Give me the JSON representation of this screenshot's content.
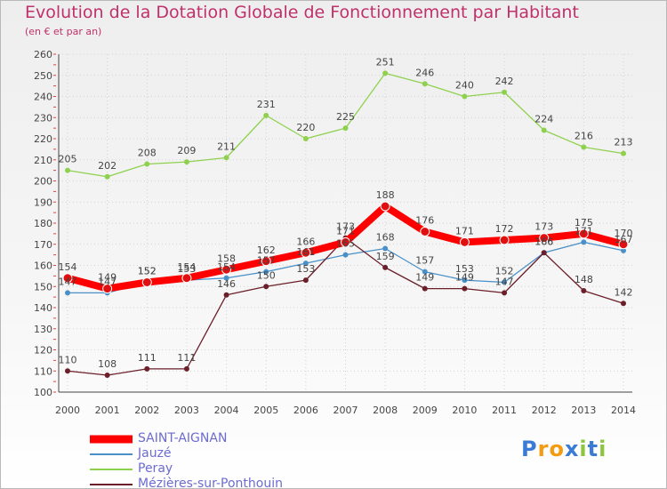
{
  "chart_data": {
    "type": "line",
    "title": "Evolution de la Dotation Globale de Fonctionnement par Habitant",
    "subtitle": "(en € et par an)",
    "x": [
      "2000",
      "2001",
      "2002",
      "2003",
      "2004",
      "2005",
      "2006",
      "2007",
      "2008",
      "2009",
      "2010",
      "2011",
      "2012",
      "2013",
      "2014"
    ],
    "ylim": [
      100,
      260
    ],
    "yticks": [
      100,
      110,
      120,
      130,
      140,
      150,
      160,
      170,
      180,
      190,
      200,
      210,
      220,
      230,
      240,
      250,
      260
    ],
    "grid": true,
    "legend_position": "bottom-left",
    "series": [
      {
        "name": "SAINT-AIGNAN",
        "color": "#ff0000",
        "values": [
          154,
          149,
          152,
          154,
          158,
          162,
          166,
          171,
          188,
          176,
          171,
          172,
          173,
          175,
          170
        ]
      },
      {
        "name": "Jauzé",
        "color": "#4a90c8",
        "values": [
          147,
          147,
          152,
          153,
          154,
          157,
          161,
          165,
          168,
          157,
          153,
          152,
          166,
          171,
          167
        ]
      },
      {
        "name": "Peray",
        "color": "#8fd14f",
        "values": [
          205,
          202,
          208,
          209,
          211,
          231,
          220,
          225,
          251,
          246,
          240,
          242,
          224,
          216,
          213
        ]
      },
      {
        "name": "Mézières-sur-Ponthouin",
        "color": "#6b1f2a",
        "values": [
          110,
          108,
          111,
          111,
          146,
          150,
          153,
          173,
          159,
          149,
          149,
          147,
          166,
          148,
          142
        ]
      }
    ]
  },
  "brand": {
    "letters": [
      {
        "ch": "P",
        "color": "#3a7bd5"
      },
      {
        "ch": "r",
        "color": "#f39c12"
      },
      {
        "ch": "o",
        "color": "#f39c12"
      },
      {
        "ch": "x",
        "color": "#3a7bd5"
      },
      {
        "ch": "i",
        "color": "#8cc63f"
      },
      {
        "ch": "t",
        "color": "#3a7bd5"
      },
      {
        "ch": "i",
        "color": "#8cc63f"
      }
    ]
  }
}
